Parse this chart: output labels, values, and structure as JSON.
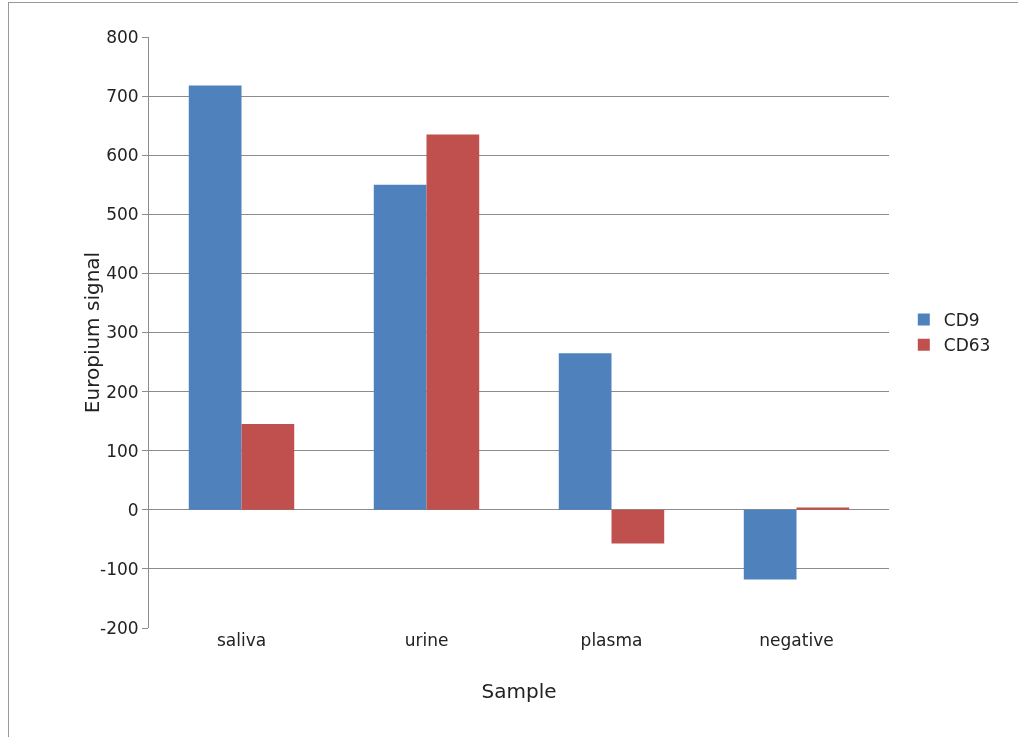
{
  "chart_data": {
    "type": "bar",
    "xlabel": "Sample",
    "ylabel": "Europium signal",
    "categories": [
      "saliva",
      "urine",
      "plasma",
      "negative"
    ],
    "series": [
      {
        "name": "CD9",
        "color": "#4f81bd",
        "values": [
          718,
          550,
          265,
          -118
        ]
      },
      {
        "name": "CD63",
        "color": "#c0504d",
        "values": [
          145,
          635,
          -57,
          4
        ]
      }
    ],
    "ylim": [
      -200,
      800
    ],
    "yticks": [
      -200,
      -100,
      0,
      100,
      200,
      300,
      400,
      500,
      600,
      700,
      800
    ],
    "grid": "y",
    "legend": "right"
  }
}
